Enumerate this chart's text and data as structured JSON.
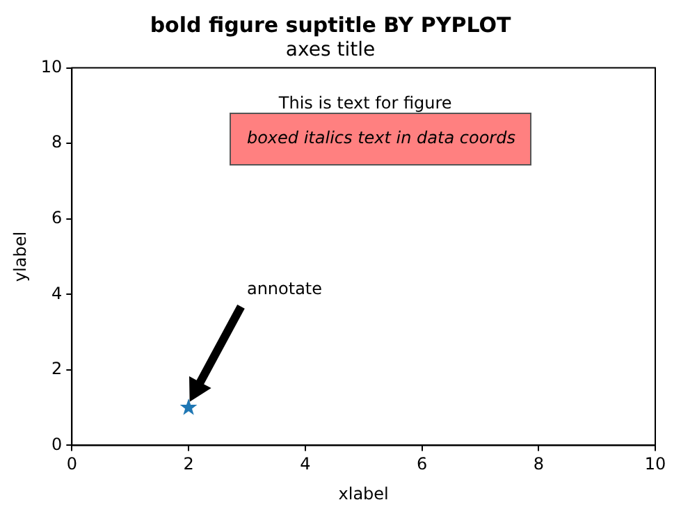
{
  "chart_data": {
    "type": "scatter",
    "title": "bold figure suptitle BY PYPLOT",
    "subtitle": "axes title",
    "xlabel": "xlabel",
    "ylabel": "ylabel",
    "x": [
      2
    ],
    "values": [
      1
    ],
    "color": "#1f77b4",
    "marker": "star",
    "xlim": [
      0,
      10
    ],
    "ylim": [
      0,
      10
    ],
    "xticks": [
      0,
      2,
      4,
      6,
      8,
      10
    ],
    "yticks": [
      0,
      2,
      4,
      6,
      8,
      10
    ],
    "grid": false,
    "legend": false,
    "annotations": [
      "This is text for figure",
      "boxed italics text in data coords",
      "annotate"
    ]
  }
}
